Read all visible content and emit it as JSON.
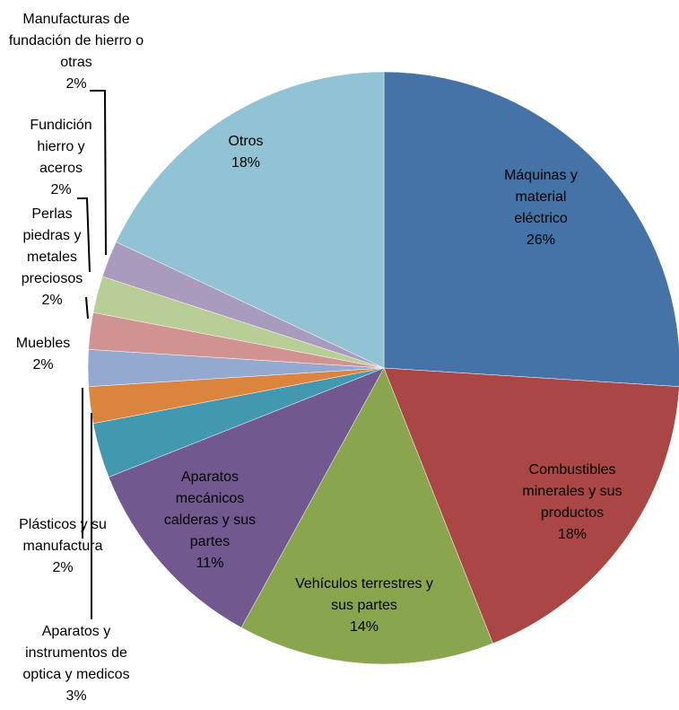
{
  "chart_data": {
    "type": "pie",
    "categories": [
      "Máquinas y material eléctrico",
      "Combustibles minerales y sus productos",
      "Vehículos terrestres y sus partes",
      "Aparatos mecánicos calderas y sus partes",
      "Aparatos y instrumentos de optica y medicos",
      "Plásticos y su manufactura",
      "Muebles",
      "Perlas piedras y metales preciosos",
      "Fundición hierro y aceros",
      "Manufacturas de fundación de hierro o otras",
      "Otros"
    ],
    "values": [
      26,
      18,
      14,
      11,
      3,
      2,
      2,
      2,
      2,
      2,
      18
    ],
    "value_labels": [
      "26%",
      "18%",
      "14%",
      "11%",
      "3%",
      "2%",
      "2%",
      "2%",
      "2%",
      "2%",
      "18%"
    ],
    "colors": [
      "#4572a7",
      "#aa4643",
      "#89a54e",
      "#71588f",
      "#4198af",
      "#db843d",
      "#93a9cf",
      "#d19392",
      "#b9cd96",
      "#a99bbd",
      "#92c3d4"
    ]
  }
}
